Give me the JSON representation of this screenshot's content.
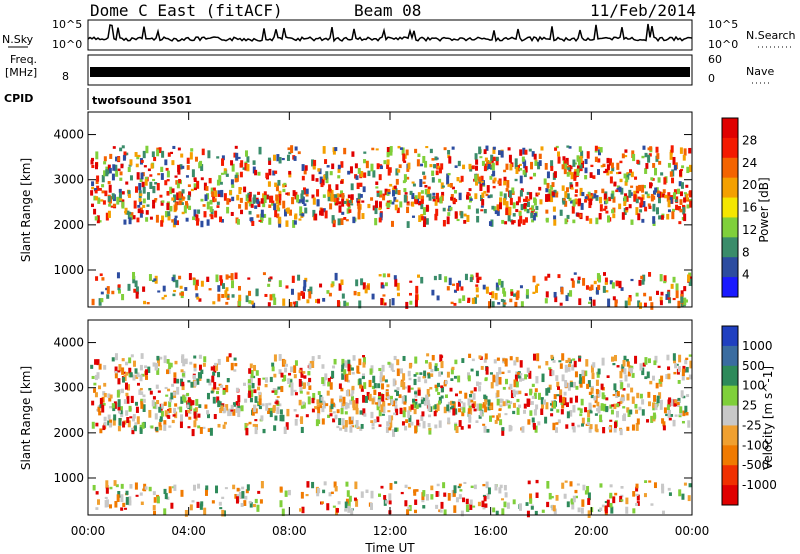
{
  "header": {
    "station": "Dome C East (fitACF)",
    "beam": "Beam 08",
    "date": "11/Feb/2014"
  },
  "panels": {
    "nsky_label": "N.Sky",
    "nsky_top": "10^5",
    "nsky_bottom": "10^0",
    "nsky_right_top": "10^5",
    "nsky_right_bottom": "10^0",
    "nsearch_label": "N.Search",
    "freq_label": "Freq.",
    "freq_unit": "[MHz]",
    "freq_value": "8",
    "nave_top": "60",
    "nave_bottom": "0",
    "nave_label": "Nave",
    "cpid_label": "CPID",
    "cpid_text": "twofsound 3501"
  },
  "chart_data": [
    {
      "type": "heatmap",
      "name": "power",
      "ylabel": "Slant Range [km]",
      "yticks": [
        "1000",
        "2000",
        "3000",
        "4000"
      ],
      "colorbar_label": "Power [dB]",
      "colorbar_ticks": [
        "4",
        "8",
        "12",
        "16",
        "20",
        "24",
        "28"
      ],
      "colors": [
        "#1a1aff",
        "#2c4ca0",
        "#3a8c6a",
        "#7fcf3a",
        "#f4e600",
        "#f4a000",
        "#f46400",
        "#f41a00",
        "#e00000"
      ]
    },
    {
      "type": "heatmap",
      "name": "velocity",
      "ylabel": "Slant Range [km]",
      "yticks": [
        "1000",
        "2000",
        "3000",
        "4000"
      ],
      "colorbar_label": "Velocity [m s^-1]",
      "colorbar_ticks": [
        "1000",
        "500",
        "100",
        "25",
        "-25",
        "-100",
        "-500",
        "-1000"
      ],
      "colors": [
        "#2040c0",
        "#3a6ca0",
        "#2e8a5a",
        "#7fcf3a",
        "#c8c8c8",
        "#f0a030",
        "#f07a00",
        "#f03000",
        "#e00000"
      ]
    }
  ],
  "xaxis": {
    "label": "Time UT",
    "ticks": [
      "00:00",
      "04:00",
      "08:00",
      "12:00",
      "16:00",
      "20:00",
      "00:00"
    ]
  }
}
